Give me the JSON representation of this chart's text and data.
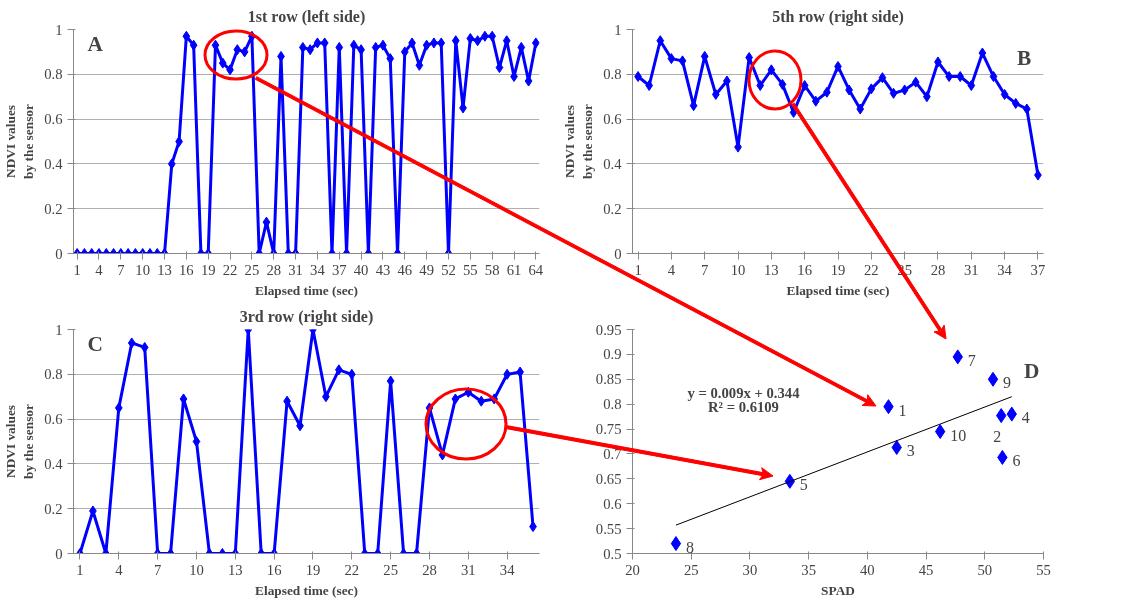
{
  "chart_data": [
    {
      "type": "line",
      "title": "1st row (left side)",
      "xlabel": "Elapsed time (sec)",
      "ylabel": "NDVI values\nby the sensor",
      "marker": "diamond",
      "grid": "y",
      "ylim": [
        0,
        1
      ],
      "yticks": [
        0,
        0.2,
        0.4,
        0.6,
        0.8,
        1
      ],
      "annotations": [
        "A"
      ],
      "categories": [
        "1",
        null,
        null,
        "4",
        null,
        null,
        "7",
        null,
        null,
        "10",
        null,
        null,
        "13",
        null,
        null,
        "16",
        null,
        null,
        "19",
        null,
        null,
        "22",
        null,
        null,
        "25",
        null,
        null,
        "28",
        null,
        null,
        "31",
        null,
        null,
        "34",
        null,
        null,
        "37",
        null,
        null,
        "40",
        null,
        null,
        "43",
        null,
        null,
        "46",
        null,
        null,
        "49",
        null,
        null,
        "52",
        null,
        null,
        "55",
        null,
        null,
        "58",
        null,
        null,
        "61",
        null,
        null,
        "64"
      ],
      "series": [
        {
          "color": "#0000ff",
          "values": [
            0,
            0,
            0,
            0,
            0,
            0,
            0,
            0,
            0,
            0,
            0,
            0,
            0,
            0.4,
            0.5,
            0.97,
            0.93,
            0,
            0,
            0.93,
            0.85,
            0.82,
            0.91,
            0.9,
            0.97,
            0,
            0.14,
            0,
            0.88,
            0,
            0,
            0.92,
            0.91,
            0.94,
            0.94,
            0,
            0.92,
            0,
            0.93,
            0.91,
            0,
            0.92,
            0.93,
            0.87,
            0,
            0.9,
            0.94,
            0.84,
            0.93,
            0.94,
            0.94,
            0,
            0.95,
            0.65,
            0.96,
            0.95,
            0.97,
            0.97,
            0.83,
            0.95,
            0.79,
            0.92,
            0.77,
            0.94
          ]
        }
      ]
    },
    {
      "type": "line",
      "title": "5th row (right side)",
      "xlabel": "Elapsed time (sec)",
      "ylabel": "NDVI values\nby the sensor",
      "marker": "diamond",
      "grid": "y",
      "ylim": [
        0,
        1
      ],
      "yticks": [
        0,
        0.2,
        0.4,
        0.6,
        0.8,
        1
      ],
      "annotations": [
        "B"
      ],
      "categories": [
        "1",
        null,
        null,
        "4",
        null,
        null,
        "7",
        null,
        null,
        "10",
        null,
        null,
        "13",
        null,
        null,
        "16",
        null,
        null,
        "19",
        null,
        null,
        "22",
        null,
        null,
        "25",
        null,
        null,
        "28",
        null,
        null,
        "31",
        null,
        null,
        "34",
        null,
        null,
        "37"
      ],
      "series": [
        {
          "color": "#0000ff",
          "values": [
            0.79,
            0.75,
            0.95,
            0.87,
            0.86,
            0.66,
            0.88,
            0.71,
            0.77,
            0.475,
            0.875,
            0.75,
            0.82,
            0.755,
            0.63,
            0.75,
            0.68,
            0.72,
            0.835,
            0.73,
            0.645,
            0.735,
            0.785,
            0.715,
            0.73,
            0.765,
            0.7,
            0.855,
            0.79,
            0.79,
            0.75,
            0.895,
            0.79,
            0.71,
            0.67,
            0.645,
            0.35
          ]
        }
      ]
    },
    {
      "type": "line",
      "title": "3rd row (right side)",
      "xlabel": "Elapsed time (sec)",
      "ylabel": "NDVI values\nby the sensor",
      "marker": "diamond",
      "grid": "y",
      "ylim": [
        0,
        1
      ],
      "yticks": [
        0,
        0.2,
        0.4,
        0.6,
        0.8,
        1
      ],
      "annotations": [
        "C"
      ],
      "categories": [
        "1",
        null,
        null,
        "4",
        null,
        null,
        "7",
        null,
        null,
        "10",
        null,
        null,
        "13",
        null,
        null,
        "16",
        null,
        null,
        "19",
        null,
        null,
        "22",
        null,
        null,
        "25",
        null,
        null,
        "28",
        null,
        null,
        "31",
        null,
        null,
        "34",
        null,
        null
      ],
      "series": [
        {
          "color": "#0000ff",
          "values": [
            0,
            0.19,
            0,
            0.65,
            0.94,
            0.92,
            0,
            0,
            0.69,
            0.5,
            0,
            0,
            0,
            1.0,
            0,
            0,
            0.68,
            0.57,
            1.0,
            0.7,
            0.82,
            0.8,
            0,
            0,
            0.77,
            0,
            0,
            0.65,
            0.44,
            0.69,
            0.72,
            0.68,
            0.69,
            0.8,
            0.81,
            0.12
          ]
        }
      ]
    },
    {
      "type": "scatter",
      "xlabel": "SPAD",
      "marker": "diamond",
      "grid": false,
      "xlim": [
        20,
        55
      ],
      "xticks": [
        20,
        25,
        30,
        35,
        40,
        45,
        50,
        55
      ],
      "ylim": [
        0.5,
        0.95
      ],
      "yticks": [
        0.5,
        0.55,
        0.6,
        0.65,
        0.7,
        0.75,
        0.8,
        0.85,
        0.9,
        0.95
      ],
      "annotations": [
        "D",
        "y = 0.009x + 0.344",
        "R² = 0.6109",
        {
          "text": "1",
          "x": 41.8,
          "y": 0.795
        },
        {
          "text": "2",
          "x": 51.4,
          "y": 0.777
        },
        {
          "text": "3",
          "x": 42.5,
          "y": 0.713
        },
        {
          "text": "4",
          "x": 52.3,
          "y": 0.78
        },
        {
          "text": "5",
          "x": 33.4,
          "y": 0.645
        },
        {
          "text": "6",
          "x": 51.5,
          "y": 0.693
        },
        {
          "text": "7",
          "x": 47.7,
          "y": 0.895
        },
        {
          "text": "8",
          "x": 23.7,
          "y": 0.52
        },
        {
          "text": "9",
          "x": 50.7,
          "y": 0.85
        },
        {
          "text": "10",
          "x": 46.2,
          "y": 0.745
        }
      ],
      "series": [
        {
          "type": "scatter",
          "color": "#0000ff",
          "x": [
            41.8,
            51.4,
            42.5,
            52.3,
            33.4,
            51.5,
            47.7,
            23.7,
            50.7,
            46.2
          ],
          "values": [
            0.795,
            0.777,
            0.713,
            0.78,
            0.645,
            0.693,
            0.895,
            0.52,
            0.85,
            0.745
          ]
        },
        {
          "type": "line",
          "marker": "none",
          "color": "#000000",
          "x": [
            23.7,
            52.3
          ],
          "values": [
            0.557,
            0.815
          ]
        }
      ]
    }
  ]
}
